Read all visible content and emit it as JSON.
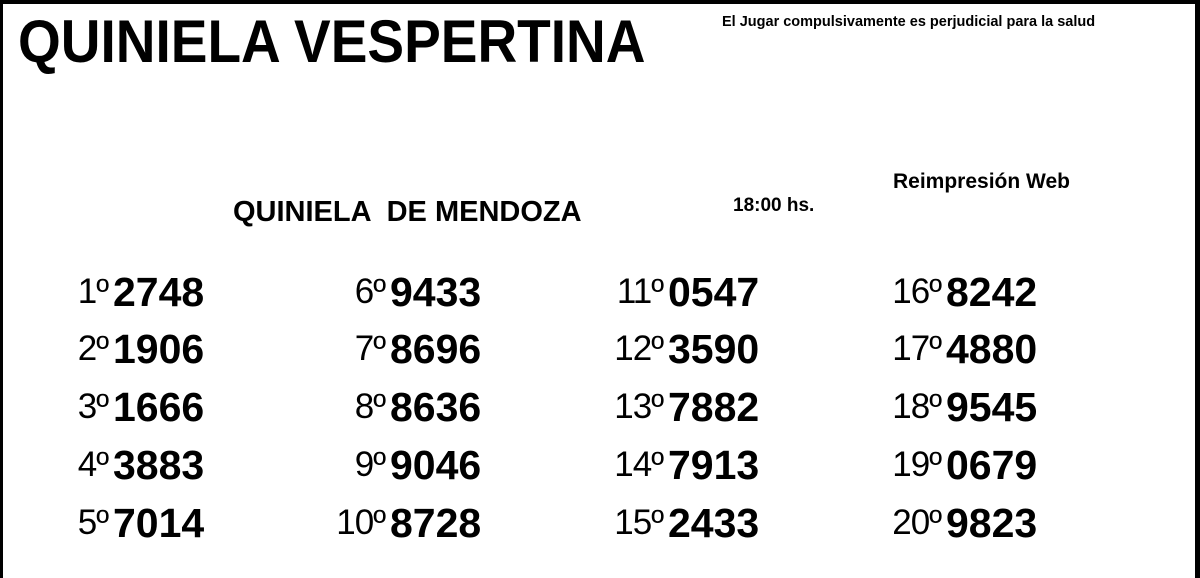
{
  "header": {
    "title": "QUINIELA VESPERTINA",
    "warning": "El Jugar compulsivamente es perjudicial para la salud"
  },
  "draw": {
    "name": "QUINIELA  DE MENDOZA",
    "time": "18:00 hs.",
    "reprint": "Reimpresión Web"
  },
  "results": [
    {
      "position": "1º",
      "number": "2748"
    },
    {
      "position": "2º",
      "number": "1906"
    },
    {
      "position": "3º",
      "number": "1666"
    },
    {
      "position": "4º",
      "number": "3883"
    },
    {
      "position": "5º",
      "number": "7014"
    },
    {
      "position": "6º",
      "number": "9433"
    },
    {
      "position": "7º",
      "number": "8696"
    },
    {
      "position": "8º",
      "number": "8636"
    },
    {
      "position": "9º",
      "number": "9046"
    },
    {
      "position": "10º",
      "number": "8728"
    },
    {
      "position": "11º",
      "number": "0547"
    },
    {
      "position": "12º",
      "number": "3590"
    },
    {
      "position": "13º",
      "number": "7882"
    },
    {
      "position": "14º",
      "number": "7913"
    },
    {
      "position": "15º",
      "number": "2433"
    },
    {
      "position": "16º",
      "number": "8242"
    },
    {
      "position": "17º",
      "number": "4880"
    },
    {
      "position": "18º",
      "number": "9545"
    },
    {
      "position": "19º",
      "number": "0679"
    },
    {
      "position": "20º",
      "number": "9823"
    }
  ]
}
